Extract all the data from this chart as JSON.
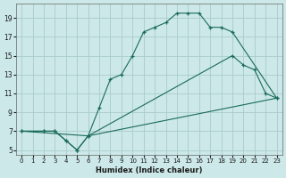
{
  "xlabel": "Humidex (Indice chaleur)",
  "bg_color": "#cce8e8",
  "grid_color": "#aacccc",
  "line_color": "#1a6b5a",
  "xlim": [
    -0.5,
    23.5
  ],
  "ylim": [
    4.5,
    20.5
  ],
  "xticks": [
    0,
    1,
    2,
    3,
    4,
    5,
    6,
    7,
    8,
    9,
    10,
    11,
    12,
    13,
    14,
    15,
    16,
    17,
    18,
    19,
    20,
    21,
    22,
    23
  ],
  "yticks": [
    5,
    7,
    9,
    11,
    13,
    15,
    17,
    19
  ],
  "line1_x": [
    0,
    2,
    3,
    4,
    5,
    6,
    7,
    8,
    9,
    10,
    11,
    12,
    13,
    14,
    15,
    16,
    17,
    18,
    19,
    23
  ],
  "line1_y": [
    7,
    7,
    7,
    6,
    5,
    6.5,
    9.5,
    12.5,
    13,
    15,
    17.5,
    18,
    18.5,
    19.5,
    19.5,
    19.5,
    18,
    18,
    17.5,
    10.5
  ],
  "line2_x": [
    0,
    2,
    3,
    4,
    5,
    6,
    19,
    20,
    21,
    22,
    23
  ],
  "line2_y": [
    7,
    7,
    7,
    6,
    5,
    6.5,
    15,
    14,
    13.5,
    11,
    10.5
  ],
  "line3_x": [
    0,
    6,
    23
  ],
  "line3_y": [
    7,
    6.5,
    10.5
  ]
}
